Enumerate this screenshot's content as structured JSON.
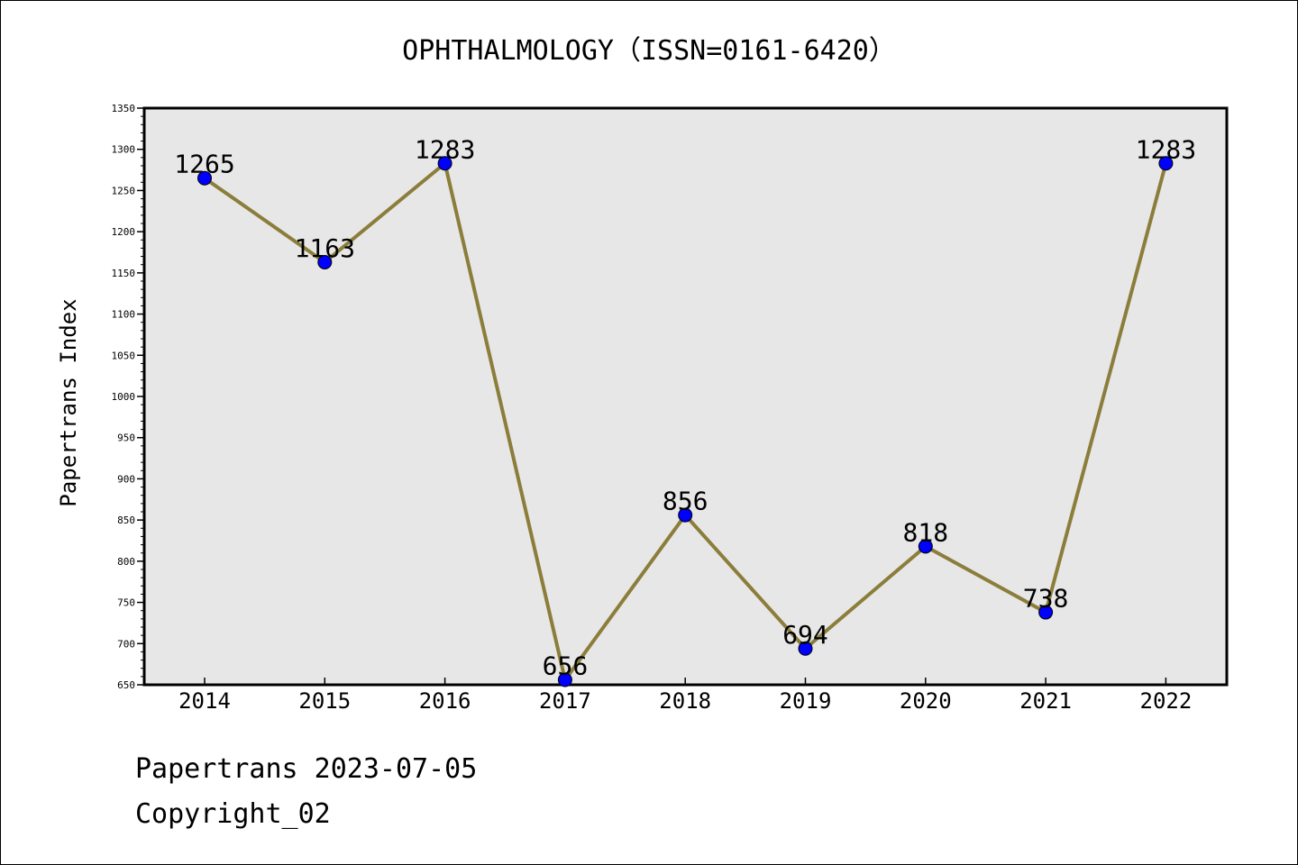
{
  "chart_data": {
    "type": "line",
    "title": "OPHTHALMOLOGY（ISSN=0161-6420）",
    "xlabel": "",
    "ylabel": "Papertrans Index",
    "categories": [
      "2014",
      "2015",
      "2016",
      "2017",
      "2018",
      "2019",
      "2020",
      "2021",
      "2022"
    ],
    "values": [
      1265,
      1163,
      1283,
      656,
      856,
      694,
      818,
      738,
      1283
    ],
    "data_labels": [
      "1265",
      "1163",
      "1283",
      "656",
      "856",
      "694",
      "818",
      "738",
      "1283"
    ],
    "ylim": [
      650,
      1350
    ],
    "yticks": [
      650,
      700,
      750,
      800,
      850,
      900,
      950,
      1000,
      1050,
      1100,
      1150,
      1200,
      1250,
      1300,
      1350
    ],
    "grid": false,
    "legend": "none",
    "colors": {
      "line": "#8b7d3a",
      "marker": "#0000ff",
      "plot_background": "#e7e7e7"
    }
  },
  "footer": {
    "line1": "Papertrans 2023-07-05",
    "line2": "Copyright_02"
  }
}
